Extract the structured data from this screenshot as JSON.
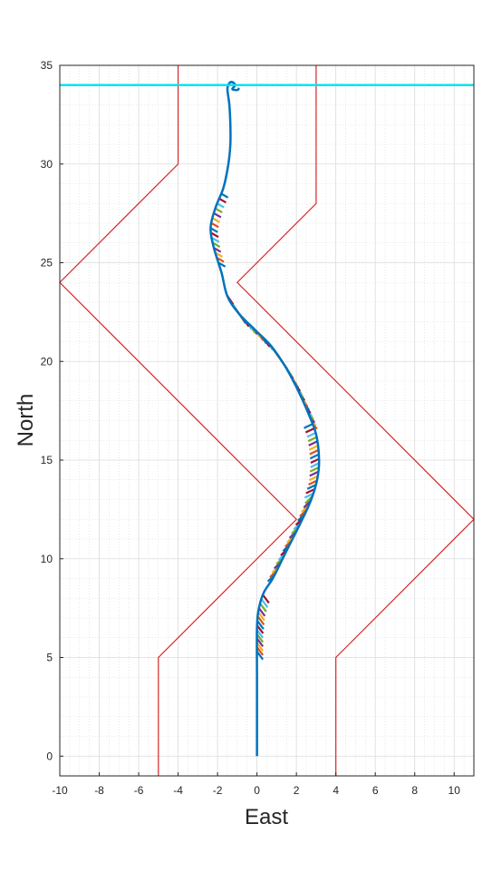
{
  "chart_data": {
    "type": "line",
    "title": "",
    "xlabel": "East",
    "ylabel": "North",
    "xlim": [
      -10,
      11
    ],
    "ylim": [
      -1,
      35
    ],
    "xticks": [
      -10,
      -8,
      -6,
      -4,
      -2,
      0,
      2,
      4,
      6,
      8,
      10
    ],
    "yticks": [
      0,
      5,
      10,
      15,
      20,
      25,
      30,
      35
    ],
    "grid": "major-solid-and-minor-dotted",
    "colors": {
      "boundary": "#d62728",
      "goal": "#00e5ee",
      "trajectory": "#0072bd",
      "ticks": [
        "#0072bd",
        "#d95319",
        "#edb120",
        "#7e2f8e",
        "#77ac30",
        "#4dbeee",
        "#a2142f"
      ]
    },
    "series": [
      {
        "key": "left_boundary",
        "x": [
          -5,
          -5,
          2,
          -10,
          -4,
          -4
        ],
        "y": [
          -1,
          5,
          12,
          24,
          30,
          35
        ]
      },
      {
        "key": "right_boundary",
        "x": [
          4,
          4,
          11,
          -1,
          3,
          3
        ],
        "y": [
          -1,
          5,
          12,
          24,
          28,
          35
        ]
      },
      {
        "key": "trajectory",
        "x": [
          0,
          0,
          0,
          0.1,
          0.35,
          0.8,
          1.3,
          1.8,
          2.3,
          2.75,
          3.05,
          3.15,
          3.0,
          2.55,
          1.95,
          1.4,
          0.7,
          -0.1,
          -0.9,
          -1.5,
          -1.8,
          -2.2,
          -2.35,
          -2.1,
          -1.7,
          -1.45,
          -1.35,
          -1.35,
          -1.4,
          -1.5,
          -1.4,
          -1.25,
          -1.1,
          -1.25,
          -1.0,
          -0.9
        ],
        "y": [
          0,
          4,
          6.5,
          7.5,
          8.3,
          9.0,
          10.0,
          11.0,
          12.0,
          13.0,
          14.0,
          15.0,
          16.3,
          17.5,
          18.8,
          19.8,
          20.8,
          21.6,
          22.4,
          23.3,
          24.5,
          25.8,
          26.8,
          27.8,
          28.8,
          30.0,
          31.0,
          32.0,
          33.0,
          33.8,
          34.1,
          34.15,
          34.0,
          33.8,
          33.75,
          33.85
        ]
      },
      {
        "key": "goal_line",
        "x": [
          -10,
          11
        ],
        "y": [
          34,
          34
        ]
      }
    ],
    "heading_ticks": {
      "segments": [
        {
          "y_from": 5.3,
          "y_to": 8.3,
          "dx": 0.3,
          "dy": -0.4,
          "step": 0.22
        },
        {
          "y_from": 9.2,
          "y_to": 13.2,
          "dx": -0.35,
          "dy": -0.35,
          "step": 0.22
        },
        {
          "y_from": 13.3,
          "y_to": 16.9,
          "dx": -0.42,
          "dy": -0.2,
          "step": 0.22
        },
        {
          "y_from": 17.0,
          "y_to": 21.8,
          "dx": 0.3,
          "dy": -0.42,
          "step": 0.16
        },
        {
          "y_from": 21.9,
          "y_to": 23.4,
          "dx": 0.3,
          "dy": -0.45,
          "step": 0.16
        },
        {
          "y_from": 25.0,
          "y_to": 28.6,
          "dx": 0.35,
          "dy": -0.2,
          "step": 0.25
        }
      ]
    }
  }
}
